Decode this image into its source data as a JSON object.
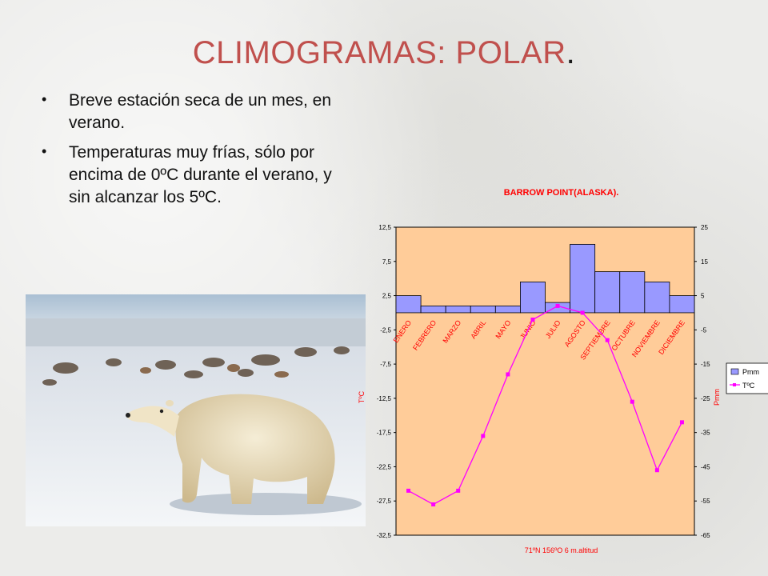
{
  "slide": {
    "title": "CLIMOGRAMAS: POLAR",
    "title_dot": ".",
    "bullets": [
      "Breve estación seca de un mes, en verano.",
      "Temperaturas muy frías, sólo por encima de 0ºC durante el verano, y sin alcanzar los 5ºC."
    ]
  },
  "photo": {
    "subject": "polar bear walking on snow and rocks"
  },
  "colors": {
    "title": "#c0504d",
    "chart_title": "#ff0000",
    "plot_bg": "#ffcc99",
    "bar_fill": "#9999ff",
    "line": "#ff00ff"
  },
  "chart_data": {
    "type": "bar+line",
    "title": "BARROW POINT(ALASKA).",
    "footer": "71ºN 156ºO    6 m.altitud",
    "categories": [
      "ENERO",
      "FEBRERO",
      "MARZO",
      "ABRIL",
      "MAYO",
      "JUNIO",
      "JULIO",
      "AGOSTO",
      "SEPTIEMBRE",
      "OCTUBRE",
      "NOVIEMBRE",
      "DICIEMBRE"
    ],
    "series": [
      {
        "name": "Pmm",
        "type": "bar",
        "axis": "right",
        "values": [
          5,
          2,
          2,
          2,
          2,
          9,
          3,
          20,
          12,
          12,
          9,
          5
        ]
      },
      {
        "name": "TºC",
        "type": "line",
        "axis": "left",
        "values": [
          -26,
          -28,
          -26,
          -18,
          -9,
          -1,
          1,
          0,
          -4,
          -13,
          -23,
          -16
        ]
      }
    ],
    "y_left": {
      "label": "TºC",
      "min": -32.5,
      "max": 12.5,
      "ticks": [
        "12,5",
        "7,5",
        "2,5",
        "-2,5",
        "-7,5",
        "-12,5",
        "-17,5",
        "-22,5",
        "-27,5",
        "-32,5"
      ]
    },
    "y_right": {
      "label": "Pmm",
      "min": -65,
      "max": 25,
      "ticks": [
        "25",
        "15",
        "5",
        "-5",
        "-15",
        "-25",
        "-35",
        "-45",
        "-55",
        "-65"
      ]
    },
    "legend": [
      "Pmm",
      "TºC"
    ],
    "legend_position": "right"
  }
}
